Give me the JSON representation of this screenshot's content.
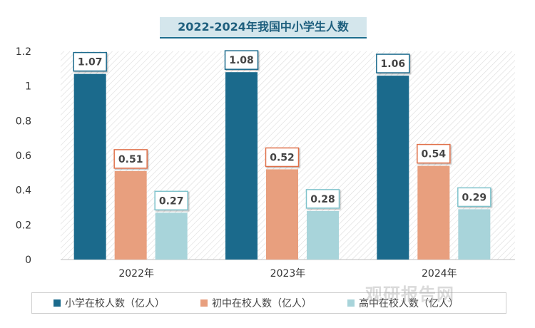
{
  "chart_data": {
    "type": "bar",
    "title": "2022-2024年我国中小学生人数",
    "categories": [
      "2022年",
      "2023年",
      "2024年"
    ],
    "series": [
      {
        "name": "小学在校人数（亿人）",
        "values": [
          1.07,
          1.08,
          1.06
        ],
        "color": "#1b6a8c"
      },
      {
        "name": "初中在校人数（亿人）",
        "values": [
          0.51,
          0.52,
          0.54
        ],
        "color": "#e89f7e"
      },
      {
        "name": "高中在校人数（亿人）",
        "values": [
          0.27,
          0.28,
          0.29
        ],
        "color": "#a8d4da"
      }
    ],
    "yticks": [
      "0",
      "0.2",
      "0.4",
      "0.6",
      "0.8",
      "1",
      "1.2"
    ],
    "ylim": [
      0,
      1.2
    ],
    "label_border_colors": [
      "#1b6a8c",
      "#e0704a",
      "#7fc3cc"
    ],
    "legend_position": "bottom",
    "grid": false
  },
  "watermark": "观研报告网"
}
